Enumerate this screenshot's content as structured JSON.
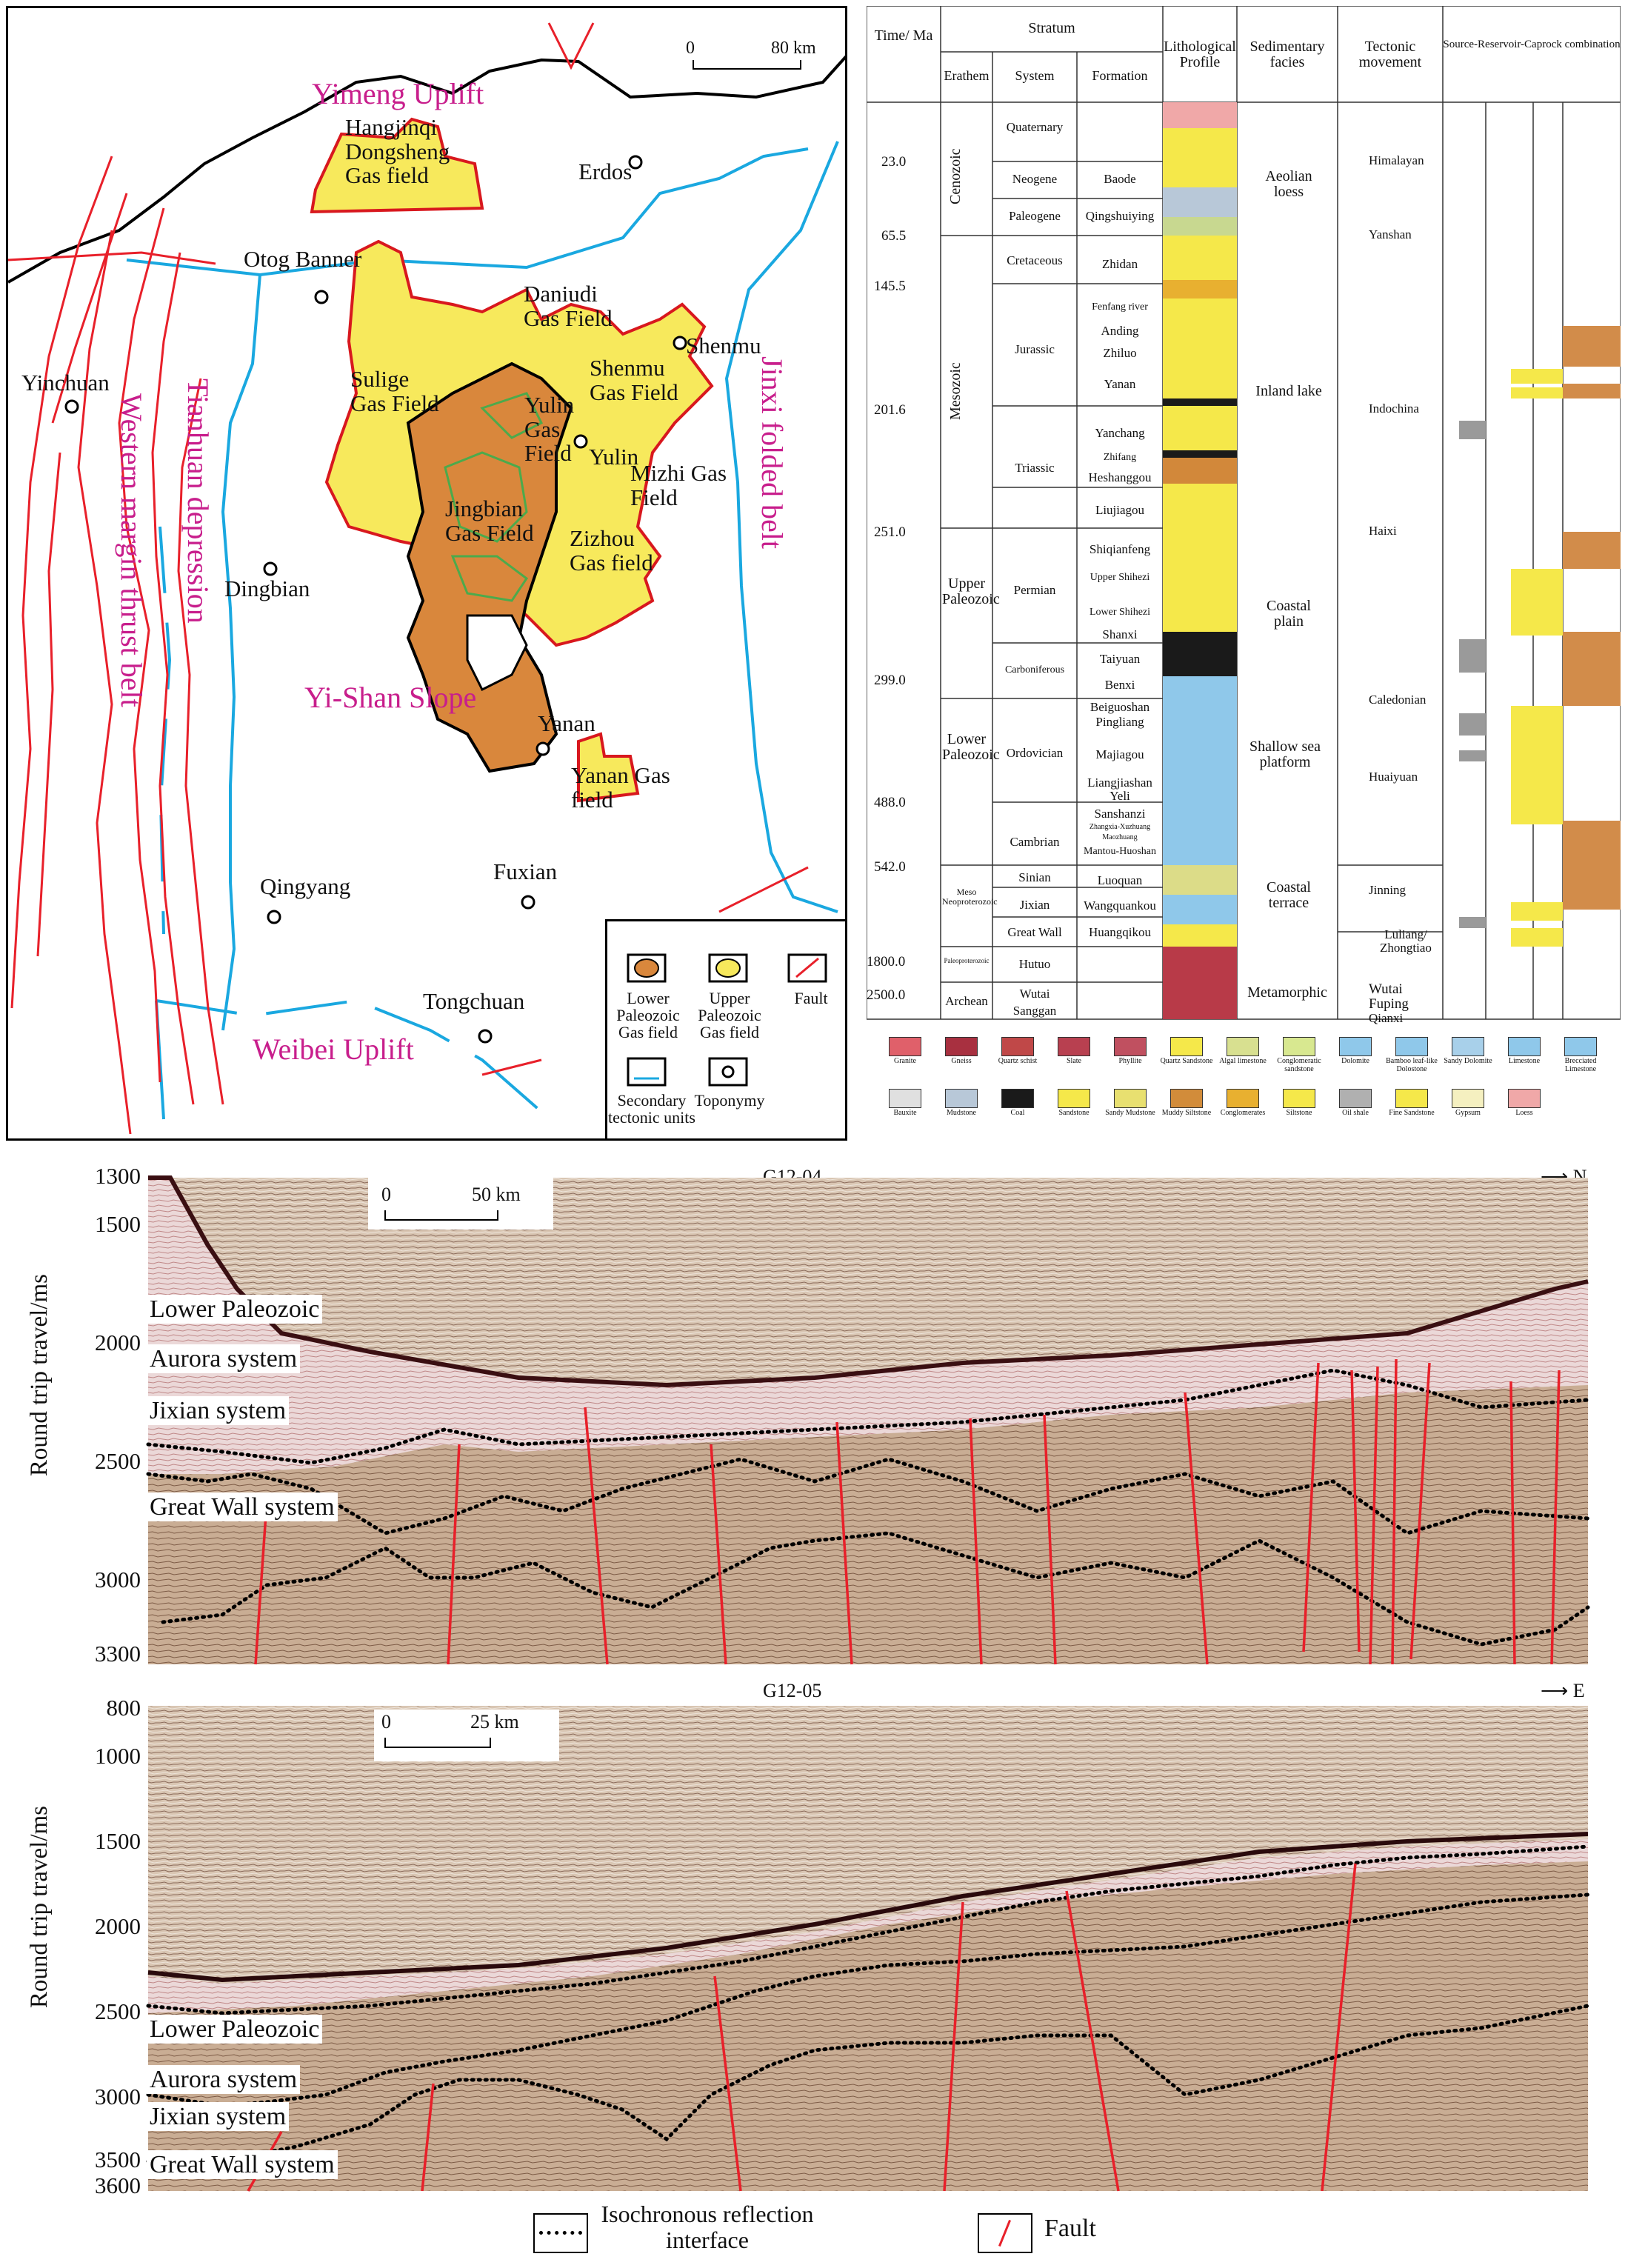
{
  "map": {
    "scale": {
      "zero": "0",
      "distance": "80 km"
    },
    "regions": {
      "yimeng": "Yimeng Uplift",
      "tianhuan": "Tianhuan depression",
      "western": "Western margin thrust belt",
      "jinxi": "Jinxi folded belt",
      "yishan": "Yi-Shan Slope",
      "weibei": "Weibei Uplift"
    },
    "gas_fields": {
      "hangjinqi": "Hangjinqi Dongsheng Gas field",
      "sulige": "Sulige Gas Field",
      "daniudi": "Daniudi Gas Field",
      "shenmu": "Shenmu Gas Field",
      "yulin": "Yulin Gas Field",
      "jingbian": "Jingbian Gas Field",
      "mizhi": "Mizhi Gas Field",
      "zizhou": "Zizhou Gas field",
      "yanan": "Yanan Gas field"
    },
    "places": {
      "erdos": "Erdos",
      "otog": "Otog Banner",
      "yinchuan": "Yinchuan",
      "shenmu": "Shenmu",
      "yulin": "Yulin",
      "dingbian": "Dingbian",
      "yanan": "Yanan",
      "qingyang": "Qingyang",
      "fuxian": "Fuxian",
      "tongchuan": "Tongchuan"
    },
    "legend": {
      "lower": "Lower Paleozoic Gas field",
      "upper": "Upper Paleozoic Gas field",
      "fault": "Fault",
      "secondary": "Secondary tectonic units",
      "toponymy": "Toponymy"
    }
  },
  "strat": {
    "headers": {
      "time": "Time/ Ma",
      "stratum": "Stratum",
      "erathem": "Erathem",
      "system": "System",
      "formation": "Formation",
      "litho": "Lithological Profile",
      "facies": "Sedimentary facies",
      "tectonic": "Tectonic movement",
      "src": "Source-Reservoir-Caprock combination"
    },
    "ages": [
      "23.0",
      "65.5",
      "145.5",
      "201.6",
      "251.0",
      "299.0",
      "488.0",
      "542.0",
      "1800.0",
      "2500.0"
    ],
    "erathems": {
      "cenozoic": "Cenozoic",
      "mesozoic": "Mesozoic",
      "upper_pz": "Upper Paleozoic",
      "lower_pz": "Lower Paleozoic",
      "meso_neo": "Meso Neoproterozoic",
      "paleoprot": "Paleoproterozoic",
      "archean": "Archean"
    },
    "systems": [
      "Quaternary",
      "Neogene",
      "Paleogene",
      "Cretaceous",
      "Jurassic",
      "Triassic",
      "Permian",
      "Carboniferous",
      "Ordovician",
      "Cambrian",
      "Sinian",
      "Jixian",
      "Great Wall",
      "Hutuo",
      "Wutai",
      "Sanggan"
    ],
    "formations": [
      "Baode",
      "Qingshuiying",
      "Zhidan",
      "Fenfang river",
      "Anding",
      "Zhiluo",
      "Yanan",
      "Yanchang",
      "Zhifang",
      "Heshanggou",
      "Liujiagou",
      "Shiqianfeng",
      "Upper Shihezi",
      "Lower Shihezi",
      "Shanxi",
      "Taiyuan",
      "Benxi",
      "Beiguoshan",
      "Pingliang",
      "Majiagou",
      "Liangjiashan",
      "Yeli",
      "Sanshanzi",
      "Zhangxia-Xuzhuang",
      "Maozhuang",
      "Mantou-Huoshan",
      "Luoquan",
      "Wangquankou",
      "Huangqikou"
    ],
    "facies": {
      "aeolian": "Aeolian loess",
      "inland": "Inland lake",
      "coastal_plain": "Coastal plain",
      "shallow": "Shallow sea platform",
      "coastal_terrace": "Coastal terrace",
      "metamorphic": "Metamorphic"
    },
    "tectonics": [
      "Himalayan",
      "Yanshan",
      "Indochina",
      "Haixi",
      "Caledonian",
      "Huaiyuan",
      "Jinning",
      "Luliang/ Zhongtiao",
      "Wutai",
      "Fuping",
      "Qianxi"
    ],
    "litho_legend": [
      "Granite",
      "Gneiss",
      "Quartz schist",
      "Slate",
      "Phyllite",
      "Quartz Sandstone",
      "Algal limestone",
      "Conglomeratic sandstone",
      "Dolomite",
      "Bamboo leaf-like Dolostone",
      "Sandy Dolomite",
      "Limestone",
      "Brecciated Limestone",
      "Bauxite",
      "Mudstone",
      "Coal",
      "Sandstone",
      "Sandy Mudstone",
      "Muddy Siltstone",
      "Conglomerates",
      "Siltstone",
      "Oil shale",
      "Fine Sandstone",
      "Gypsum",
      "Loess"
    ],
    "colors": {
      "yellow": "#f5e84a",
      "orange": "#d28c4a",
      "gray": "#9a9a9a",
      "blue": "#8fc8ea",
      "red": "#b83a48",
      "coal": "#1a1a1a"
    }
  },
  "sections": {
    "s1": {
      "title": "G12-04",
      "direction": "N",
      "scale": {
        "zero": "0",
        "distance": "50 km"
      },
      "yticks": [
        "1300",
        "1500",
        "2000",
        "2500",
        "3000",
        "3300"
      ],
      "ylabel": "Round trip travel/ms",
      "units": [
        "Lower Paleozoic",
        "Aurora system",
        "Jixian system",
        "Great Wall system"
      ]
    },
    "s2": {
      "title": "G12-05",
      "direction": "E",
      "scale": {
        "zero": "0",
        "distance": "25 km"
      },
      "yticks": [
        "800",
        "1000",
        "1500",
        "2000",
        "2500",
        "3000",
        "3500",
        "3600"
      ],
      "ylabel": "Round trip travel/ms",
      "units": [
        "Lower Paleozoic",
        "Aurora system",
        "Jixian system",
        "Great Wall system"
      ]
    }
  },
  "legend": {
    "isochronous": "Isochronous reflection interface",
    "fault": "Fault"
  }
}
